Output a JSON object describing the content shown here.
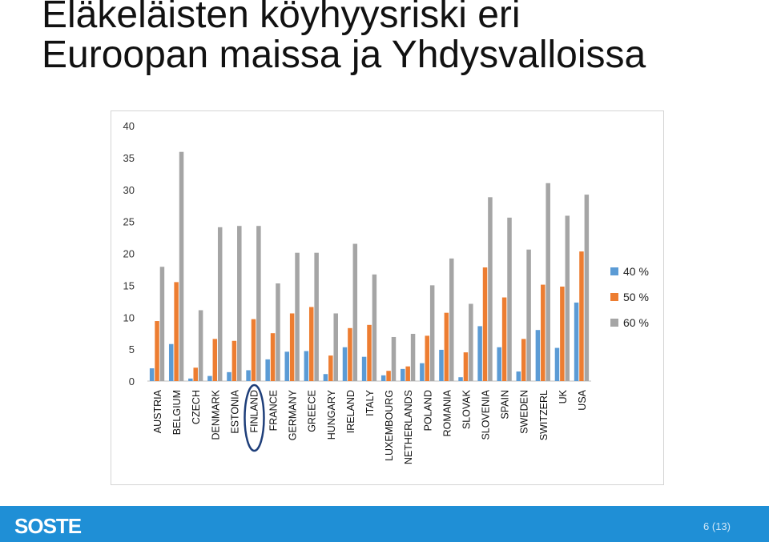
{
  "slide": {
    "title_line1": "Eläkeläisten köyhyysriski eri",
    "title_line2": "Euroopan maissa ja Yhdysvalloissa",
    "logo": "SOSTE",
    "page_number": "6 (13)"
  },
  "colors": {
    "series_40": "#5b9bd5",
    "series_50": "#ed7d31",
    "series_60": "#a5a5a5",
    "footer": "#1f8fd6",
    "highlight_circle": "#1f3f7a"
  },
  "chart_data": {
    "type": "bar",
    "title": "",
    "xlabel": "",
    "ylabel": "",
    "ylim": [
      0,
      40
    ],
    "yticks": [
      0,
      5,
      10,
      15,
      20,
      25,
      30,
      35,
      40
    ],
    "grid": false,
    "legend_position": "right",
    "highlighted_category": "FINLAND",
    "categories": [
      "AUSTRIA",
      "BELGIUM",
      "CZECH",
      "DENMARK",
      "ESTONIA",
      "FINLAND",
      "FRANCE",
      "GERMANY",
      "GREECE",
      "HUNGARY",
      "IRELAND",
      "ITALY",
      "LUXEMBOURG",
      "NETHERLANDS",
      "POLAND",
      "ROMANIA",
      "SLOVAK",
      "SLOVENIA",
      "SPAIN",
      "SWEDEN",
      "SWITZERL",
      "UK",
      "USA"
    ],
    "series": [
      {
        "name": "40 %",
        "color": "#5b9bd5",
        "values": [
          2.0,
          5.8,
          0.4,
          0.8,
          1.4,
          1.7,
          3.4,
          4.6,
          4.7,
          1.1,
          5.3,
          3.8,
          0.9,
          1.9,
          2.8,
          4.9,
          0.6,
          8.6,
          5.3,
          1.5,
          8.0,
          5.2,
          12.3
        ]
      },
      {
        "name": "50 %",
        "color": "#ed7d31",
        "values": [
          9.4,
          15.5,
          2.1,
          6.6,
          6.3,
          9.7,
          7.5,
          10.6,
          11.6,
          4.0,
          8.3,
          8.8,
          1.6,
          2.3,
          7.1,
          10.7,
          4.5,
          17.8,
          13.1,
          6.6,
          15.1,
          14.8,
          20.3
        ]
      },
      {
        "name": "60 %",
        "color": "#a5a5a5",
        "values": [
          17.9,
          35.9,
          11.1,
          24.1,
          24.3,
          24.3,
          15.3,
          20.1,
          20.1,
          10.6,
          21.5,
          16.7,
          6.9,
          7.4,
          15.0,
          19.2,
          12.1,
          28.8,
          25.6,
          20.6,
          31.0,
          25.9,
          29.2
        ]
      }
    ]
  }
}
